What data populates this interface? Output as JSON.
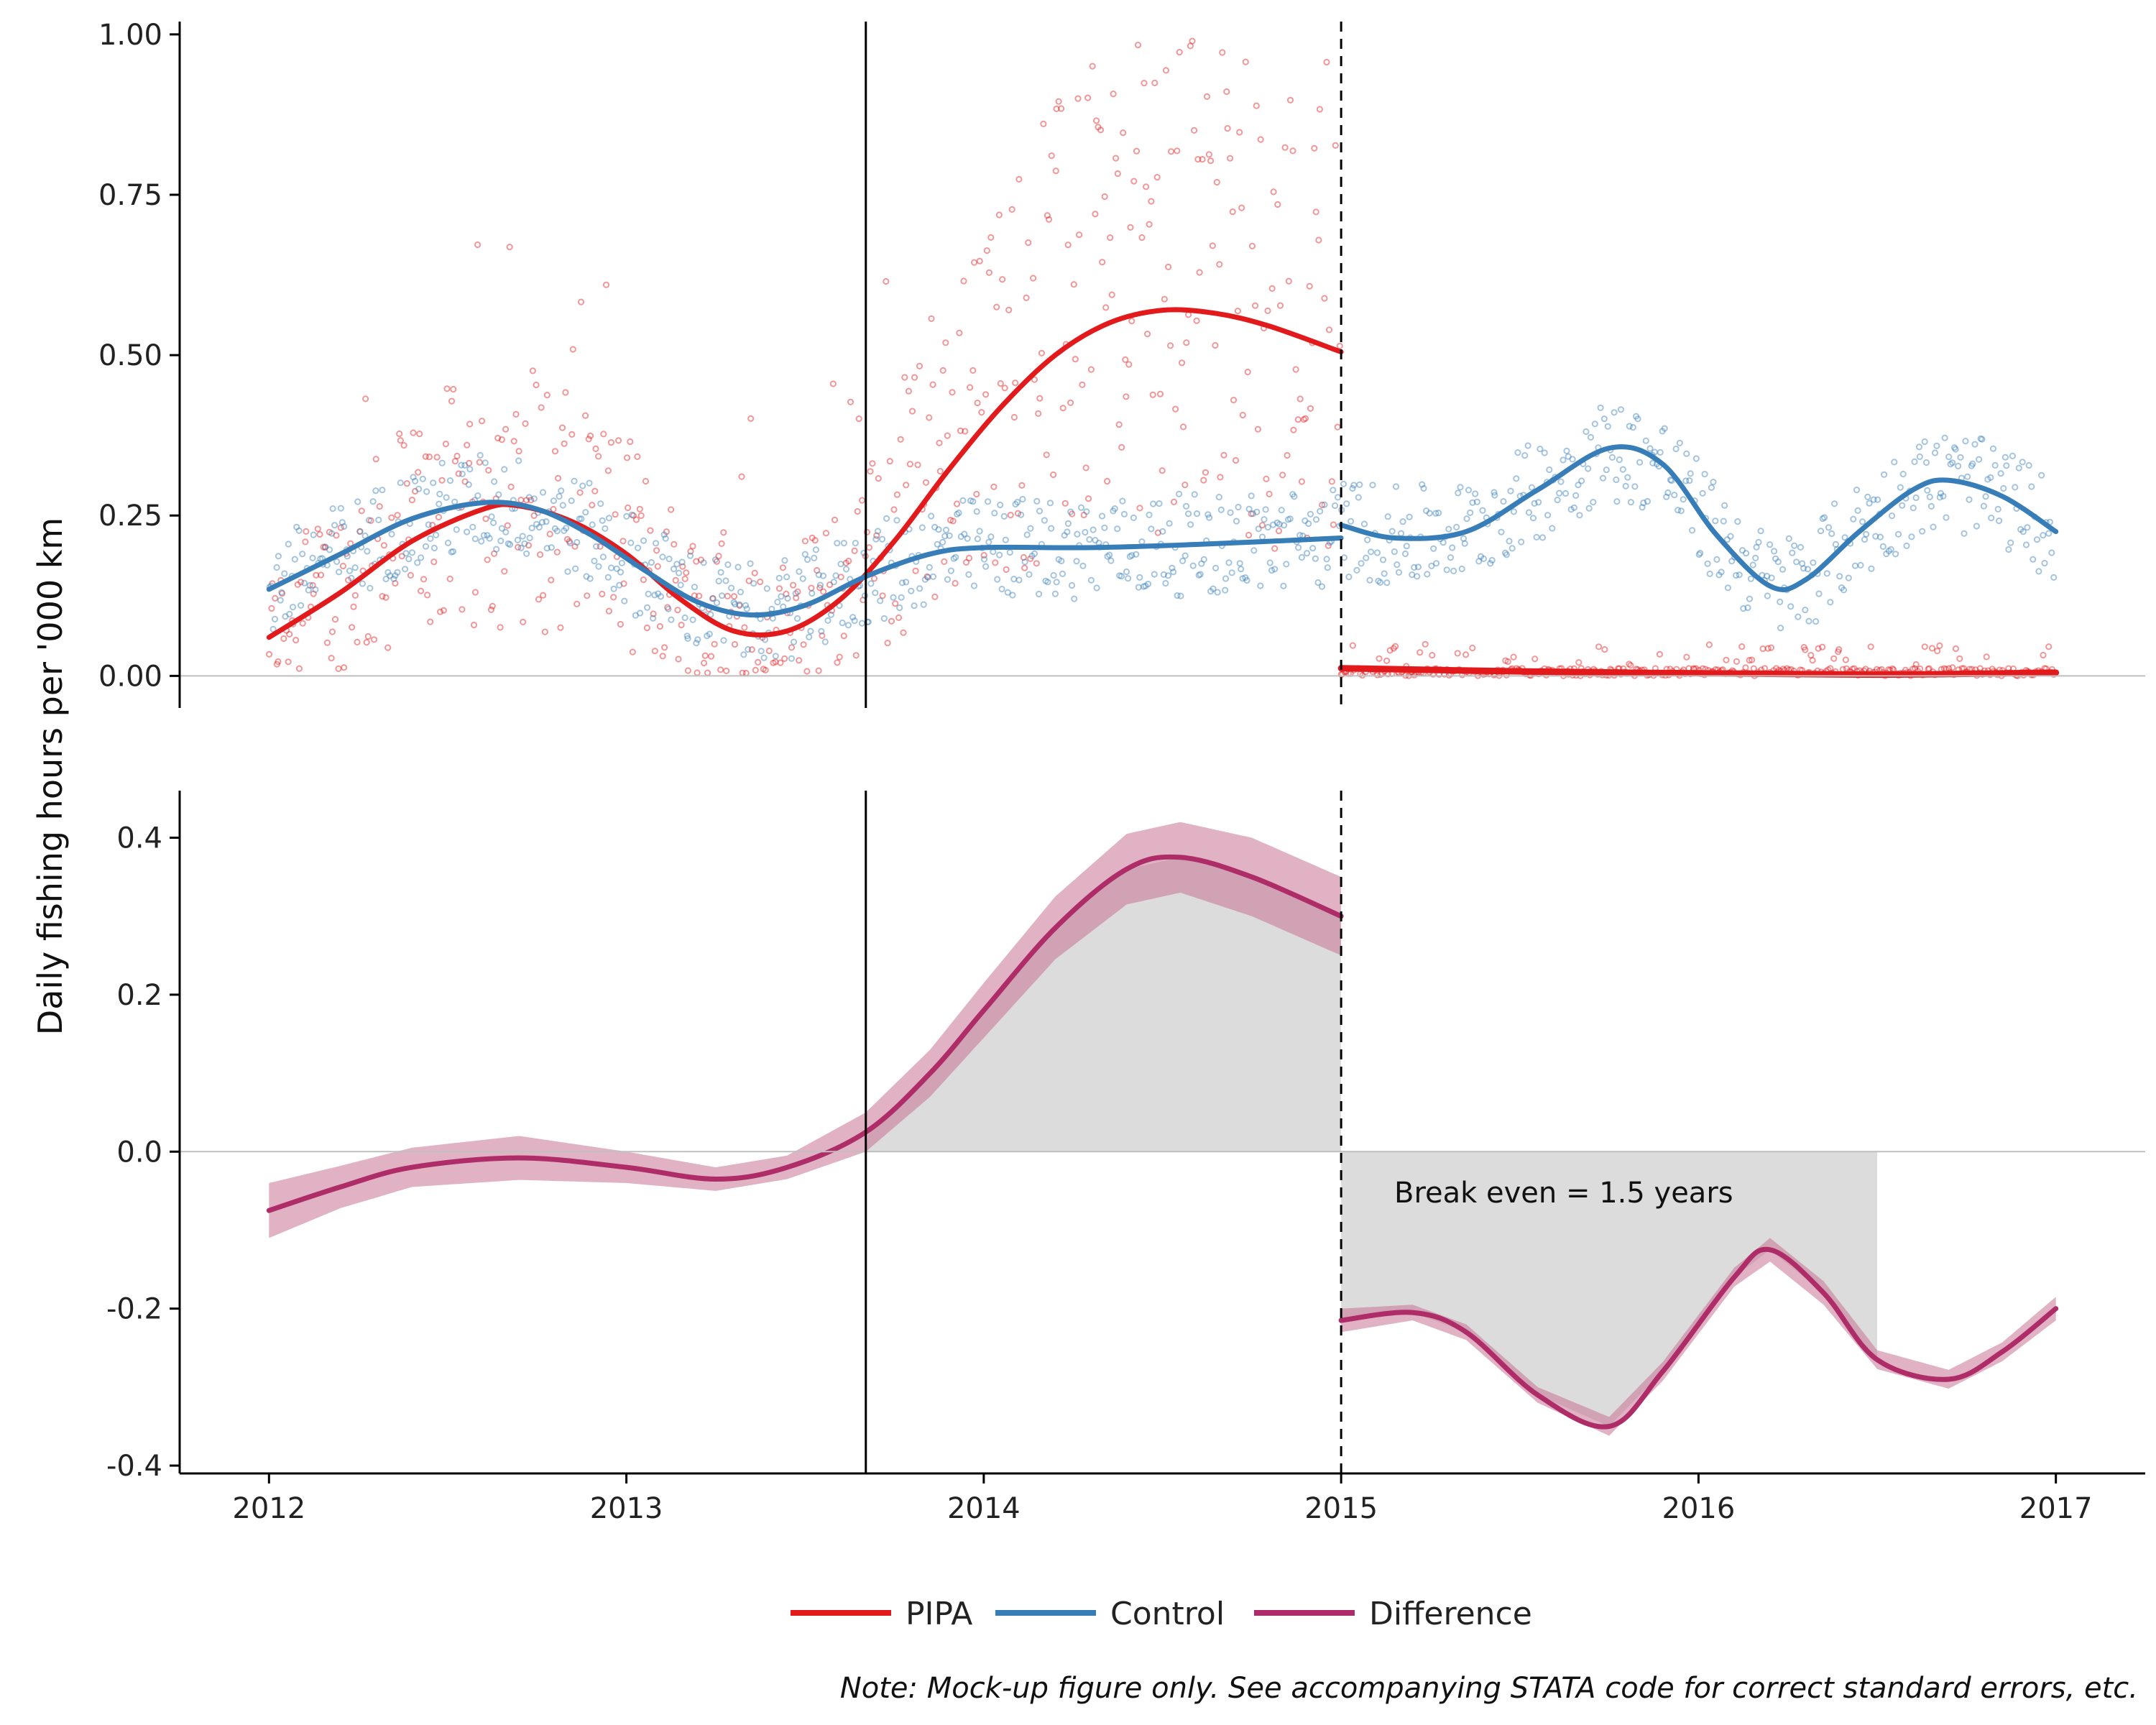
{
  "chart_data": [
    {
      "type": "scatter",
      "panel": "top",
      "ylabel": "Daily fishing hours per '000 km",
      "ylim": [
        -0.05,
        1.02
      ],
      "yticks": [
        "0.00",
        "0.25",
        "0.50",
        "0.75",
        "1.00"
      ],
      "ytick_values": [
        0,
        0.25,
        0.5,
        0.75,
        1.0
      ],
      "xlim": [
        2011.75,
        2017.25
      ],
      "reference_lines": [
        {
          "x": 2013.67,
          "style": "solid"
        },
        {
          "x": 2015.0,
          "style": "dashed"
        }
      ],
      "series": [
        {
          "name": "PIPA",
          "color": "#e31a1c",
          "smooth": [
            [
              2012.0,
              0.06
            ],
            [
              2012.2,
              0.13
            ],
            [
              2012.4,
              0.21
            ],
            [
              2012.6,
              0.26
            ],
            [
              2012.7,
              0.265
            ],
            [
              2012.85,
              0.24
            ],
            [
              2013.0,
              0.19
            ],
            [
              2013.15,
              0.12
            ],
            [
              2013.3,
              0.07
            ],
            [
              2013.45,
              0.07
            ],
            [
              2013.6,
              0.12
            ],
            [
              2013.75,
              0.21
            ],
            [
              2013.9,
              0.32
            ],
            [
              2014.05,
              0.42
            ],
            [
              2014.2,
              0.5
            ],
            [
              2014.35,
              0.55
            ],
            [
              2014.5,
              0.57
            ],
            [
              2014.65,
              0.565
            ],
            [
              2014.8,
              0.545
            ],
            [
              2015.0,
              0.505
            ]
          ],
          "smooth_post": [
            [
              2015.0,
              0.012
            ],
            [
              2015.5,
              0.007
            ],
            [
              2016.0,
              0.004
            ],
            [
              2016.5,
              0.002
            ],
            [
              2017.0,
              0.005
            ]
          ]
        },
        {
          "name": "Control",
          "color": "#377eb8",
          "smooth": [
            [
              2012.0,
              0.135
            ],
            [
              2012.2,
              0.19
            ],
            [
              2012.4,
              0.245
            ],
            [
              2012.6,
              0.27
            ],
            [
              2012.75,
              0.26
            ],
            [
              2012.9,
              0.22
            ],
            [
              2013.05,
              0.165
            ],
            [
              2013.2,
              0.115
            ],
            [
              2013.35,
              0.095
            ],
            [
              2013.5,
              0.11
            ],
            [
              2013.67,
              0.155
            ],
            [
              2013.85,
              0.19
            ],
            [
              2014.0,
              0.2
            ],
            [
              2014.3,
              0.2
            ],
            [
              2014.6,
              0.205
            ],
            [
              2015.0,
              0.215
            ]
          ],
          "smooth_post": [
            [
              2015.0,
              0.235
            ],
            [
              2015.15,
              0.215
            ],
            [
              2015.35,
              0.225
            ],
            [
              2015.55,
              0.29
            ],
            [
              2015.75,
              0.355
            ],
            [
              2015.9,
              0.33
            ],
            [
              2016.05,
              0.22
            ],
            [
              2016.2,
              0.14
            ],
            [
              2016.3,
              0.15
            ],
            [
              2016.45,
              0.225
            ],
            [
              2016.6,
              0.29
            ],
            [
              2016.7,
              0.305
            ],
            [
              2016.85,
              0.28
            ],
            [
              2017.0,
              0.225
            ]
          ]
        }
      ]
    },
    {
      "type": "line",
      "panel": "bottom",
      "ylim": [
        -0.41,
        0.46
      ],
      "yticks": [
        "-0.4",
        "-0.2",
        "0.0",
        "0.2",
        "0.4"
      ],
      "ytick_values": [
        -0.4,
        -0.2,
        0,
        0.2,
        0.4
      ],
      "xlim": [
        2011.75,
        2017.25
      ],
      "xticks": [
        "2012",
        "2013",
        "2014",
        "2015",
        "2016",
        "2017"
      ],
      "xtick_values": [
        2012,
        2013,
        2014,
        2015,
        2016,
        2017
      ],
      "reference_lines": [
        {
          "x": 2013.67,
          "style": "solid"
        },
        {
          "x": 2015.0,
          "style": "dashed"
        }
      ],
      "series": [
        {
          "name": "Difference",
          "color": "#ae2d68",
          "band_color": "#c97394",
          "pre": [
            [
              2012.0,
              -0.075,
              0.035
            ],
            [
              2012.2,
              -0.045,
              0.027
            ],
            [
              2012.4,
              -0.02,
              0.025
            ],
            [
              2012.7,
              -0.008,
              0.028
            ],
            [
              2013.0,
              -0.02,
              0.02
            ],
            [
              2013.25,
              -0.035,
              0.015
            ],
            [
              2013.45,
              -0.02,
              0.015
            ],
            [
              2013.67,
              0.025,
              0.025
            ],
            [
              2013.85,
              0.1,
              0.03
            ],
            [
              2014.0,
              0.18,
              0.035
            ],
            [
              2014.2,
              0.285,
              0.04
            ],
            [
              2014.4,
              0.36,
              0.045
            ],
            [
              2014.55,
              0.375,
              0.045
            ],
            [
              2014.75,
              0.35,
              0.05
            ],
            [
              2015.0,
              0.3,
              0.05
            ]
          ],
          "post": [
            [
              2015.0,
              -0.215,
              0.015
            ],
            [
              2015.2,
              -0.205,
              0.01
            ],
            [
              2015.35,
              -0.23,
              0.01
            ],
            [
              2015.55,
              -0.31,
              0.01
            ],
            [
              2015.75,
              -0.35,
              0.012
            ],
            [
              2015.9,
              -0.28,
              0.012
            ],
            [
              2016.1,
              -0.16,
              0.012
            ],
            [
              2016.2,
              -0.125,
              0.015
            ],
            [
              2016.35,
              -0.18,
              0.015
            ],
            [
              2016.5,
              -0.265,
              0.012
            ],
            [
              2016.7,
              -0.29,
              0.012
            ],
            [
              2016.85,
              -0.255,
              0.012
            ],
            [
              2017.0,
              -0.2,
              0.015
            ]
          ],
          "shade_pre": {
            "from": 2013.67,
            "to": 2015.0
          },
          "shade_post": {
            "from": 2015.0,
            "to": 2016.5
          }
        }
      ],
      "annotation": "Break even = 1.5 years"
    }
  ],
  "legend": {
    "items": [
      {
        "label": "PIPA",
        "color": "#e31a1c"
      },
      {
        "label": "Control",
        "color": "#377eb8"
      },
      {
        "label": "Difference",
        "color": "#ae2d68"
      }
    ]
  },
  "ylabel": "Daily fishing hours per '000 km",
  "note": "Note: Mock-up figure only. See accompanying STATA code for correct standard errors, etc."
}
